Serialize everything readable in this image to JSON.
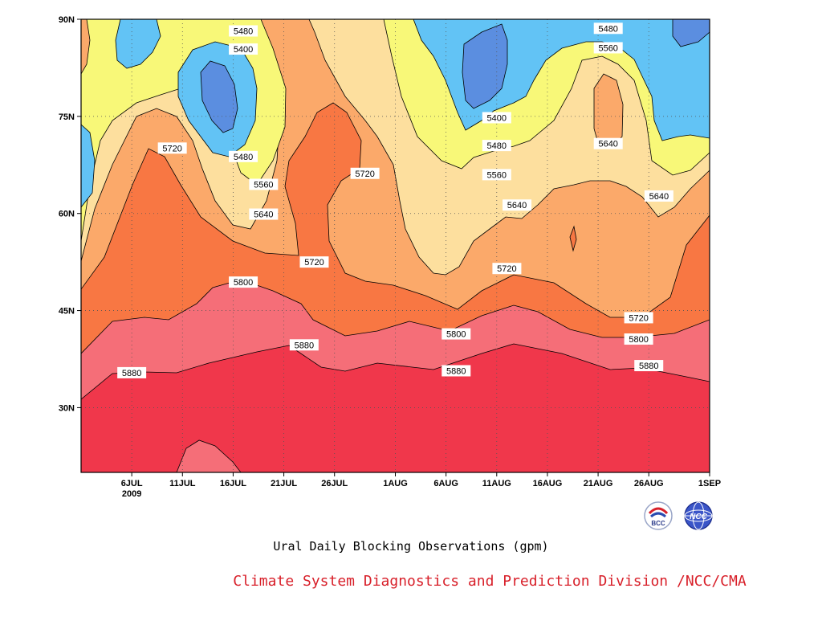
{
  "chart_data": {
    "type": "heatmap",
    "title": "Ural Daily Blocking Observations (gpm)",
    "credit": "Climate System Diagnostics and Prediction Division /NCC/CMA",
    "x_axis": {
      "type": "date",
      "range": [
        "2009-07-01",
        "2009-09-01"
      ],
      "ticks": [
        {
          "date": "2009-07-06",
          "label": "6JUL",
          "sublabel": "2009"
        },
        {
          "date": "2009-07-11",
          "label": "11JUL"
        },
        {
          "date": "2009-07-16",
          "label": "16JUL"
        },
        {
          "date": "2009-07-21",
          "label": "21JUL"
        },
        {
          "date": "2009-07-26",
          "label": "26JUL"
        },
        {
          "date": "2009-08-01",
          "label": "1AUG"
        },
        {
          "date": "2009-08-06",
          "label": "6AUG"
        },
        {
          "date": "2009-08-11",
          "label": "11AUG"
        },
        {
          "date": "2009-08-16",
          "label": "16AUG"
        },
        {
          "date": "2009-08-21",
          "label": "21AUG"
        },
        {
          "date": "2009-08-26",
          "label": "26AUG"
        },
        {
          "date": "2009-09-01",
          "label": "1SEP"
        }
      ]
    },
    "y_axis": {
      "range": [
        20,
        90
      ],
      "ticks": [
        {
          "value": 30,
          "label": "30N"
        },
        {
          "value": 45,
          "label": "45N"
        },
        {
          "value": 60,
          "label": "60N"
        },
        {
          "value": 75,
          "label": "75N"
        },
        {
          "value": 90,
          "label": "90N"
        }
      ]
    },
    "grid": true,
    "contour_levels": [
      5400,
      5480,
      5560,
      5640,
      5720,
      5800,
      5880
    ],
    "fill_colors": [
      "#5b8ee0",
      "#62c3f5",
      "#f8f878",
      "#fddf9e",
      "#fba96a",
      "#f87743",
      "#f56e78",
      "#f0374b"
    ],
    "contour_labels": [
      {
        "value": 5480,
        "date": "2009-07-17",
        "lat": 88.2
      },
      {
        "value": 5400,
        "date": "2009-07-17",
        "lat": 85.4
      },
      {
        "value": 5480,
        "date": "2009-07-17",
        "lat": 68.8
      },
      {
        "value": 5560,
        "date": "2009-07-19",
        "lat": 64.5
      },
      {
        "value": 5640,
        "date": "2009-07-19",
        "lat": 59.9
      },
      {
        "value": 5720,
        "date": "2009-07-10",
        "lat": 70.1
      },
      {
        "value": 5720,
        "date": "2009-07-29",
        "lat": 66.2
      },
      {
        "value": 5720,
        "date": "2009-07-24",
        "lat": 52.5
      },
      {
        "value": 5800,
        "date": "2009-07-17",
        "lat": 49.4
      },
      {
        "value": 5880,
        "date": "2009-07-23",
        "lat": 39.7
      },
      {
        "value": 5880,
        "date": "2009-07-06",
        "lat": 35.4
      },
      {
        "value": 5400,
        "date": "2009-08-11",
        "lat": 74.8
      },
      {
        "value": 5480,
        "date": "2009-08-11",
        "lat": 70.5
      },
      {
        "value": 5560,
        "date": "2009-08-11",
        "lat": 66.0
      },
      {
        "value": 5640,
        "date": "2009-08-13",
        "lat": 61.3
      },
      {
        "value": 5720,
        "date": "2009-08-12",
        "lat": 51.5
      },
      {
        "value": 5800,
        "date": "2009-08-07",
        "lat": 41.4
      },
      {
        "value": 5880,
        "date": "2009-08-07",
        "lat": 35.7
      },
      {
        "value": 5480,
        "date": "2009-08-22",
        "lat": 88.6
      },
      {
        "value": 5560,
        "date": "2009-08-22",
        "lat": 85.6
      },
      {
        "value": 5640,
        "date": "2009-08-22",
        "lat": 70.8
      },
      {
        "value": 5640,
        "date": "2009-08-27",
        "lat": 62.7
      },
      {
        "value": 5720,
        "date": "2009-08-25",
        "lat": 43.9
      },
      {
        "value": 5800,
        "date": "2009-08-25",
        "lat": 40.6
      },
      {
        "value": 5880,
        "date": "2009-08-26",
        "lat": 36.5
      }
    ]
  },
  "logos": {
    "bcc": {
      "text": "BCC",
      "icon": "bcc-logo-icon"
    },
    "ncc": {
      "text": "NCC",
      "icon": "ncc-logo-icon"
    }
  }
}
